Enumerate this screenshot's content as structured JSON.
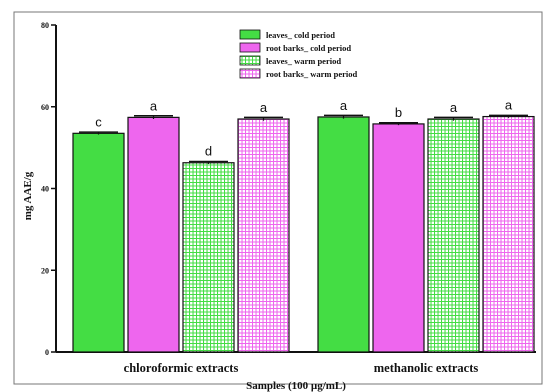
{
  "chart_data": {
    "type": "bar",
    "xlabel": "Samples (100 µg/mL)",
    "ylabel": "mg AAE/g",
    "ylim": [
      0,
      80
    ],
    "yticks": [
      0,
      20,
      40,
      60,
      80
    ],
    "categories": [
      "chloroformic extracts",
      "methanolic extracts"
    ],
    "legend_position": "top-center",
    "series": [
      {
        "name": "leaves_ cold period",
        "color": "#44dd44",
        "pattern": "solid",
        "values": [
          53.5,
          57.5
        ],
        "errors": [
          0.3,
          0.4
        ],
        "letters": [
          "c",
          "a"
        ]
      },
      {
        "name": "root barks_ cold period",
        "color": "#ee66ee",
        "pattern": "solid",
        "values": [
          57.4,
          55.8
        ],
        "errors": [
          0.4,
          0.3
        ],
        "letters": [
          "a",
          "b"
        ]
      },
      {
        "name": "leaves_ warm period",
        "color": "#44dd44",
        "pattern": "grid",
        "values": [
          46.3,
          57.0
        ],
        "errors": [
          0.3,
          0.4
        ],
        "letters": [
          "d",
          "a"
        ]
      },
      {
        "name": "root barks_ warm period",
        "color": "#ee66ee",
        "pattern": "grid",
        "values": [
          57.0,
          57.6
        ],
        "errors": [
          0.4,
          0.3
        ],
        "letters": [
          "a",
          "a"
        ]
      }
    ]
  }
}
